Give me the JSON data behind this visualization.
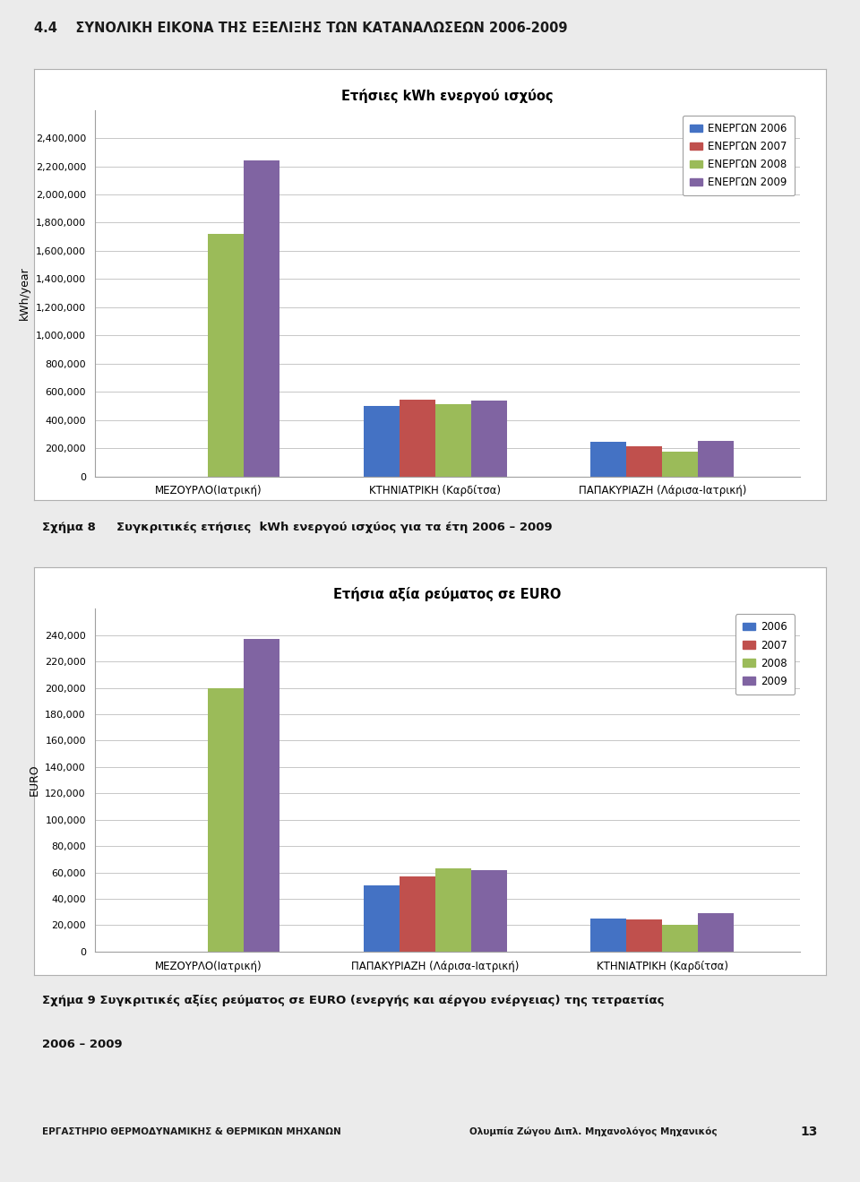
{
  "page_title": "4.4    ΣΥΝΟΛΙΚΗ ΕΙΚΟΝΑ ΤΗΣ ΕΞΕΛΙΞΗΣ ΤΩΝ ΚΑΤΑΝΑΛΩΣΕΩΝ 2006-2009",
  "chart1": {
    "title": "Ετήσιες kWh ενεργού ισχύος",
    "ylabel": "kWh/year",
    "categories": [
      "ΜΕΖΟΥΡΛΟ(Ιατρική)",
      "ΚΤΗΝΙΑΤΡΙΚΗ (Καρδίτσα)",
      "ΠΑΠΑΚΥΡΙΑΖΗ (Λάρισα-Ιατρική)"
    ],
    "series": {
      "ΕΝΕΡΓΩΝ 2006": [
        0,
        500000,
        245000
      ],
      "ΕΝΕΡΓΩΝ 2007": [
        0,
        545000,
        215000
      ],
      "ΕΝΕΡΓΩΝ 2008": [
        1720000,
        515000,
        175000
      ],
      "ΕΝΕΡΓΩΝ 2009": [
        2240000,
        535000,
        250000
      ]
    },
    "colors": [
      "#4472C4",
      "#C0504D",
      "#9BBB59",
      "#8064A2"
    ],
    "ylim": [
      0,
      2600000
    ],
    "yticks": [
      0,
      200000,
      400000,
      600000,
      800000,
      1000000,
      1200000,
      1400000,
      1600000,
      1800000,
      2000000,
      2200000,
      2400000
    ],
    "ytick_labels": [
      "0",
      "200,000",
      "400,000",
      "600,000",
      "800,000",
      "1,000,000",
      "1,200,000",
      "1,400,000",
      "1,600,000",
      "1,800,000",
      "2,000,000",
      "2,200,000",
      "2,400,000"
    ]
  },
  "chart1_caption": "Σχήμα 8     Συγκριτικές ετήσιες  kWh ενεργού ισχύος για τα έτη 2006 – 2009",
  "chart2": {
    "title": "Ετήσια αξία ρεύματος σε EURO",
    "ylabel": "EURO",
    "categories": [
      "ΜΕΖΟΥΡΛΟ(Ιατρική)",
      "ΠΑΠΑΚΥΡΙΑΖΗ (Λάρισα-Ιατρική)",
      "ΚΤΗΝΙΑΤΡΙΚΗ (Καρδίτσα)"
    ],
    "series": {
      "2006": [
        0,
        50000,
        25000
      ],
      "2007": [
        0,
        57000,
        24000
      ],
      "2008": [
        200000,
        63000,
        20000
      ],
      "2009": [
        237000,
        62000,
        29000
      ]
    },
    "colors": [
      "#4472C4",
      "#C0504D",
      "#9BBB59",
      "#8064A2"
    ],
    "ylim": [
      0,
      260000
    ],
    "yticks": [
      0,
      20000,
      40000,
      60000,
      80000,
      100000,
      120000,
      140000,
      160000,
      180000,
      200000,
      220000,
      240000
    ],
    "ytick_labels": [
      "0",
      "20,000",
      "40,000",
      "60,000",
      "80,000",
      "100,000",
      "120,000",
      "140,000",
      "160,000",
      "180,000",
      "200,000",
      "220,000",
      "240,000"
    ]
  },
  "chart2_caption_line1": "Σχήμα 9 Συγκριτικές αξίες ρεύματος σε EURO (ενεργής και αέργου ενέργειας) της τετραετίας",
  "chart2_caption_line2": "2006 – 2009",
  "footer_left": "ΕΡΓΑΣΤΗΡΙΟ ΘΕΡΜΟΔΥΝΑΜΙΚΗΣ & ΘΕΡΜΙΚΩΝ ΜΗΧΑΝΩΝ",
  "footer_right": "Ολυμπία Ζώγου Διπλ. Μηχανολόγος Μηχανικός",
  "page_number": "13",
  "bg_color": "#EBEBEB",
  "chart_bg": "#FFFFFF",
  "grid_color": "#BEBEBE",
  "title_bg": "#D8E0EC"
}
